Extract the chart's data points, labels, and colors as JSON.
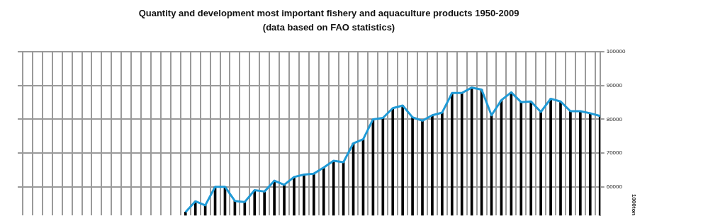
{
  "chart_data": {
    "type": "bar",
    "title": "Quantity and development most important fishery and aquaculture products 1950-2009",
    "subtitle": "(data based on FAO statistics)",
    "ylabel": "1000ton",
    "categories": [
      null,
      null,
      null,
      null,
      null,
      null,
      null,
      null,
      null,
      null,
      null,
      null,
      null,
      null,
      null,
      null,
      null,
      null,
      null,
      null,
      null,
      null,
      null,
      null,
      null,
      null,
      null,
      null,
      null,
      null,
      null,
      null,
      null,
      null,
      null,
      null,
      null,
      null,
      null,
      null,
      null,
      null,
      null,
      null,
      null,
      null,
      null,
      null,
      null,
      null,
      null,
      null,
      null,
      null,
      null,
      null,
      null,
      null,
      null,
      null
    ],
    "series": [
      {
        "color": "#000000",
        "values": [
          null,
          null,
          null,
          null,
          null,
          null,
          null,
          null,
          null,
          null,
          null,
          null,
          null,
          null,
          null,
          null,
          null,
          52500,
          55700,
          54500,
          60000,
          60000,
          55800,
          55500,
          59000,
          58600,
          61800,
          60600,
          62900,
          63600,
          63900,
          65700,
          67700,
          67300,
          72900,
          74100,
          80000,
          80400,
          83300,
          84100,
          80600,
          79600,
          81200,
          82000,
          87800,
          87800,
          89400,
          88800,
          81200,
          85700,
          88000,
          85100,
          85300,
          82200,
          86100,
          85300,
          82400,
          82400,
          81800,
          81000
        ]
      },
      {
        "type": "line",
        "color": "#1f9ad6",
        "values": [
          null,
          null,
          null,
          null,
          null,
          null,
          null,
          null,
          null,
          null,
          null,
          null,
          null,
          null,
          null,
          null,
          null,
          52500,
          55700,
          54500,
          60000,
          60000,
          55800,
          55500,
          59000,
          58600,
          61800,
          60600,
          62900,
          63600,
          63900,
          65700,
          67700,
          67300,
          72900,
          74100,
          80000,
          80400,
          83300,
          84100,
          80600,
          79600,
          81200,
          82000,
          87800,
          87800,
          89400,
          88800,
          81200,
          85700,
          88000,
          85100,
          85300,
          82200,
          86100,
          85300,
          82400,
          82400,
          81800,
          81000
        ]
      }
    ],
    "ylim": [
      51500,
      100000
    ],
    "yticks": [
      60000,
      70000,
      80000,
      90000,
      100000
    ],
    "grid": true,
    "tick_labels": "y",
    "marker": "none"
  }
}
